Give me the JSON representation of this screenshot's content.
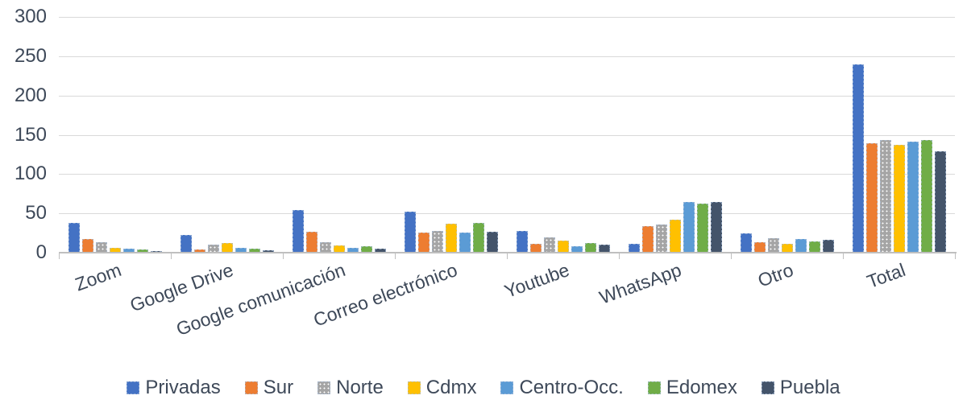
{
  "chart_data": {
    "type": "bar",
    "title": "",
    "xlabel": "",
    "ylabel": "",
    "ylim": [
      0,
      300
    ],
    "ytick_step": 50,
    "grid": true,
    "legend_position": "bottom",
    "categories": [
      "Zoom",
      "Google Drive",
      "Google comunicación",
      "Correo electrónico",
      "Youtube",
      "WhatsApp",
      "Otro",
      "Total"
    ],
    "series": [
      {
        "name": "Privadas",
        "color": "#4472C4",
        "pattern": "solid",
        "values": [
          38,
          23,
          54,
          52,
          28,
          11,
          25,
          240
        ]
      },
      {
        "name": "Sur",
        "color": "#ED7D31",
        "pattern": "solid",
        "values": [
          17,
          4,
          27,
          26,
          11,
          34,
          13,
          139
        ]
      },
      {
        "name": "Norte",
        "color": "#A5A5A5",
        "pattern": "dots",
        "values": [
          13,
          10,
          13,
          28,
          19,
          36,
          18,
          143
        ]
      },
      {
        "name": "Cdmx",
        "color": "#FFC000",
        "pattern": "solid",
        "values": [
          6,
          12,
          9,
          37,
          15,
          42,
          11,
          137
        ]
      },
      {
        "name": "Centro-Occ.",
        "color": "#5B9BD5",
        "pattern": "solid",
        "values": [
          5,
          6,
          6,
          26,
          8,
          64,
          17,
          141
        ]
      },
      {
        "name": "Edomex",
        "color": "#70AD47",
        "pattern": "solid",
        "values": [
          4,
          5,
          8,
          38,
          12,
          62,
          14,
          143
        ]
      },
      {
        "name": "Puebla",
        "color": "#44546A",
        "pattern": "solid",
        "values": [
          2,
          3,
          5,
          27,
          10,
          64,
          16,
          129
        ]
      }
    ]
  },
  "colors": {
    "grid": "#D9D9D9",
    "axis": "#BFBFBF",
    "text": "#3E4959",
    "background": "#FFFFFF"
  },
  "layout_values": {
    "ytick_labels": [
      "0",
      "50",
      "100",
      "150",
      "200",
      "250",
      "300"
    ]
  }
}
